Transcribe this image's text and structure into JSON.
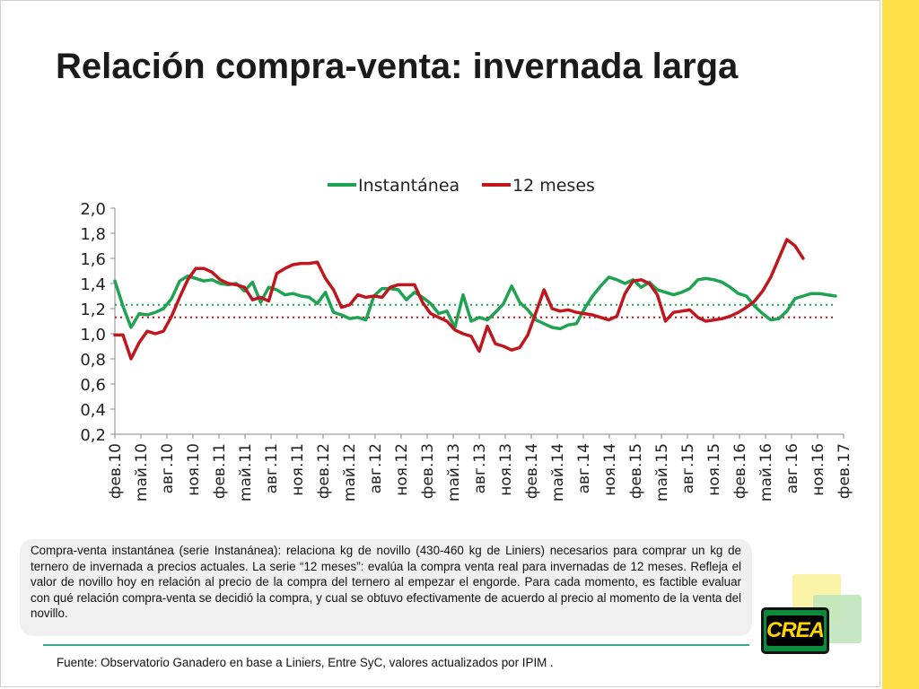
{
  "slide": {
    "title": "Relación compra-venta: invernada larga",
    "note": "Compra-venta instantánea (serie Instanánea): relaciona kg de novillo (430-460 kg de Liniers) necesarios para comprar un kg de ternero de invernada a precios actuales. La serie “12 meses”: evalúa la compra venta real para invernadas de 12 meses. Refleja el valor de novillo hoy en relación al precio de la compra del ternero al empezar el engorde. Para cada momento, es factible evaluar con qué relación compra-venta se decidió la compra, y cual se obtuvo efectivamente de acuerdo al precio  al momento de la venta del novillo.",
    "source": "Fuente: Observatorio Ganadero en base a Liniers, Entre SyC,  valores actualizados por IPIM .",
    "logo_text": "CREA",
    "accent_color": "#fde047"
  },
  "chart_data": {
    "type": "line",
    "ylim": [
      0.2,
      2.0
    ],
    "yticks": [
      "2,0",
      "1,8",
      "1,6",
      "1,4",
      "1,2",
      "1,0",
      "0,8",
      "0,6",
      "0,4",
      "0,2"
    ],
    "x_tick_labels": [
      "фeв.10",
      "maй.10",
      "aвг.10",
      "нoя.10",
      "фeв.11",
      "maй.11",
      "aвг.11",
      "нoя.11",
      "фeв.12",
      "maй.12",
      "aвг.12",
      "нoя.12",
      "фeв.13",
      "maй.13",
      "aвг.13",
      "нoя.13",
      "фeв.14",
      "maй.14",
      "aвг.14",
      "нoя.14",
      "фeв.15",
      "maй.15",
      "aвг.15",
      "нoя.15",
      "фeв.16",
      "maй.16",
      "aвг.16",
      "нoя.16",
      "фeв.17"
    ],
    "legend_position": "top",
    "grid": false,
    "series": [
      {
        "name": "Instantánea",
        "color": "#1fa353",
        "mean_line": 1.23,
        "values": [
          1.42,
          1.22,
          1.05,
          1.16,
          1.15,
          1.17,
          1.2,
          1.28,
          1.42,
          1.46,
          1.44,
          1.42,
          1.43,
          1.4,
          1.39,
          1.4,
          1.34,
          1.41,
          1.25,
          1.37,
          1.35,
          1.31,
          1.32,
          1.3,
          1.29,
          1.24,
          1.33,
          1.17,
          1.15,
          1.12,
          1.13,
          1.11,
          1.3,
          1.36,
          1.36,
          1.35,
          1.27,
          1.33,
          1.29,
          1.24,
          1.16,
          1.18,
          1.05,
          1.31,
          1.1,
          1.13,
          1.11,
          1.17,
          1.24,
          1.38,
          1.25,
          1.19,
          1.11,
          1.08,
          1.05,
          1.04,
          1.07,
          1.08,
          1.2,
          1.3,
          1.38,
          1.45,
          1.43,
          1.4,
          1.43,
          1.37,
          1.41,
          1.35,
          1.33,
          1.31,
          1.33,
          1.36,
          1.43,
          1.44,
          1.43,
          1.41,
          1.37,
          1.32,
          1.3,
          1.22,
          1.16,
          1.11,
          1.12,
          1.18,
          1.28,
          1.3,
          1.32,
          1.32,
          1.31,
          1.3,
          null
        ]
      },
      {
        "name": "12 meses",
        "color": "#c0161e",
        "mean_line": 1.13,
        "values": [
          0.99,
          0.99,
          0.8,
          0.93,
          1.02,
          1.0,
          1.02,
          1.14,
          1.29,
          1.43,
          1.52,
          1.52,
          1.49,
          1.43,
          1.4,
          1.39,
          1.37,
          1.27,
          1.29,
          1.26,
          1.48,
          1.52,
          1.55,
          1.56,
          1.56,
          1.57,
          1.44,
          1.35,
          1.21,
          1.23,
          1.31,
          1.29,
          1.3,
          1.29,
          1.37,
          1.39,
          1.39,
          1.39,
          1.25,
          1.16,
          1.13,
          1.1,
          1.03,
          1.0,
          0.98,
          0.86,
          1.06,
          0.92,
          0.9,
          0.87,
          0.89,
          0.99,
          1.17,
          1.35,
          1.2,
          1.18,
          1.19,
          1.17,
          1.16,
          1.15,
          1.13,
          1.11,
          1.14,
          1.32,
          1.42,
          1.43,
          1.4,
          1.31,
          1.1,
          1.17,
          1.18,
          1.19,
          1.13,
          1.1,
          1.11,
          1.12,
          1.14,
          1.17,
          1.21,
          1.26,
          1.34,
          1.45,
          1.6,
          1.75,
          1.7,
          1.6,
          null,
          null,
          null,
          null,
          null
        ]
      }
    ]
  }
}
